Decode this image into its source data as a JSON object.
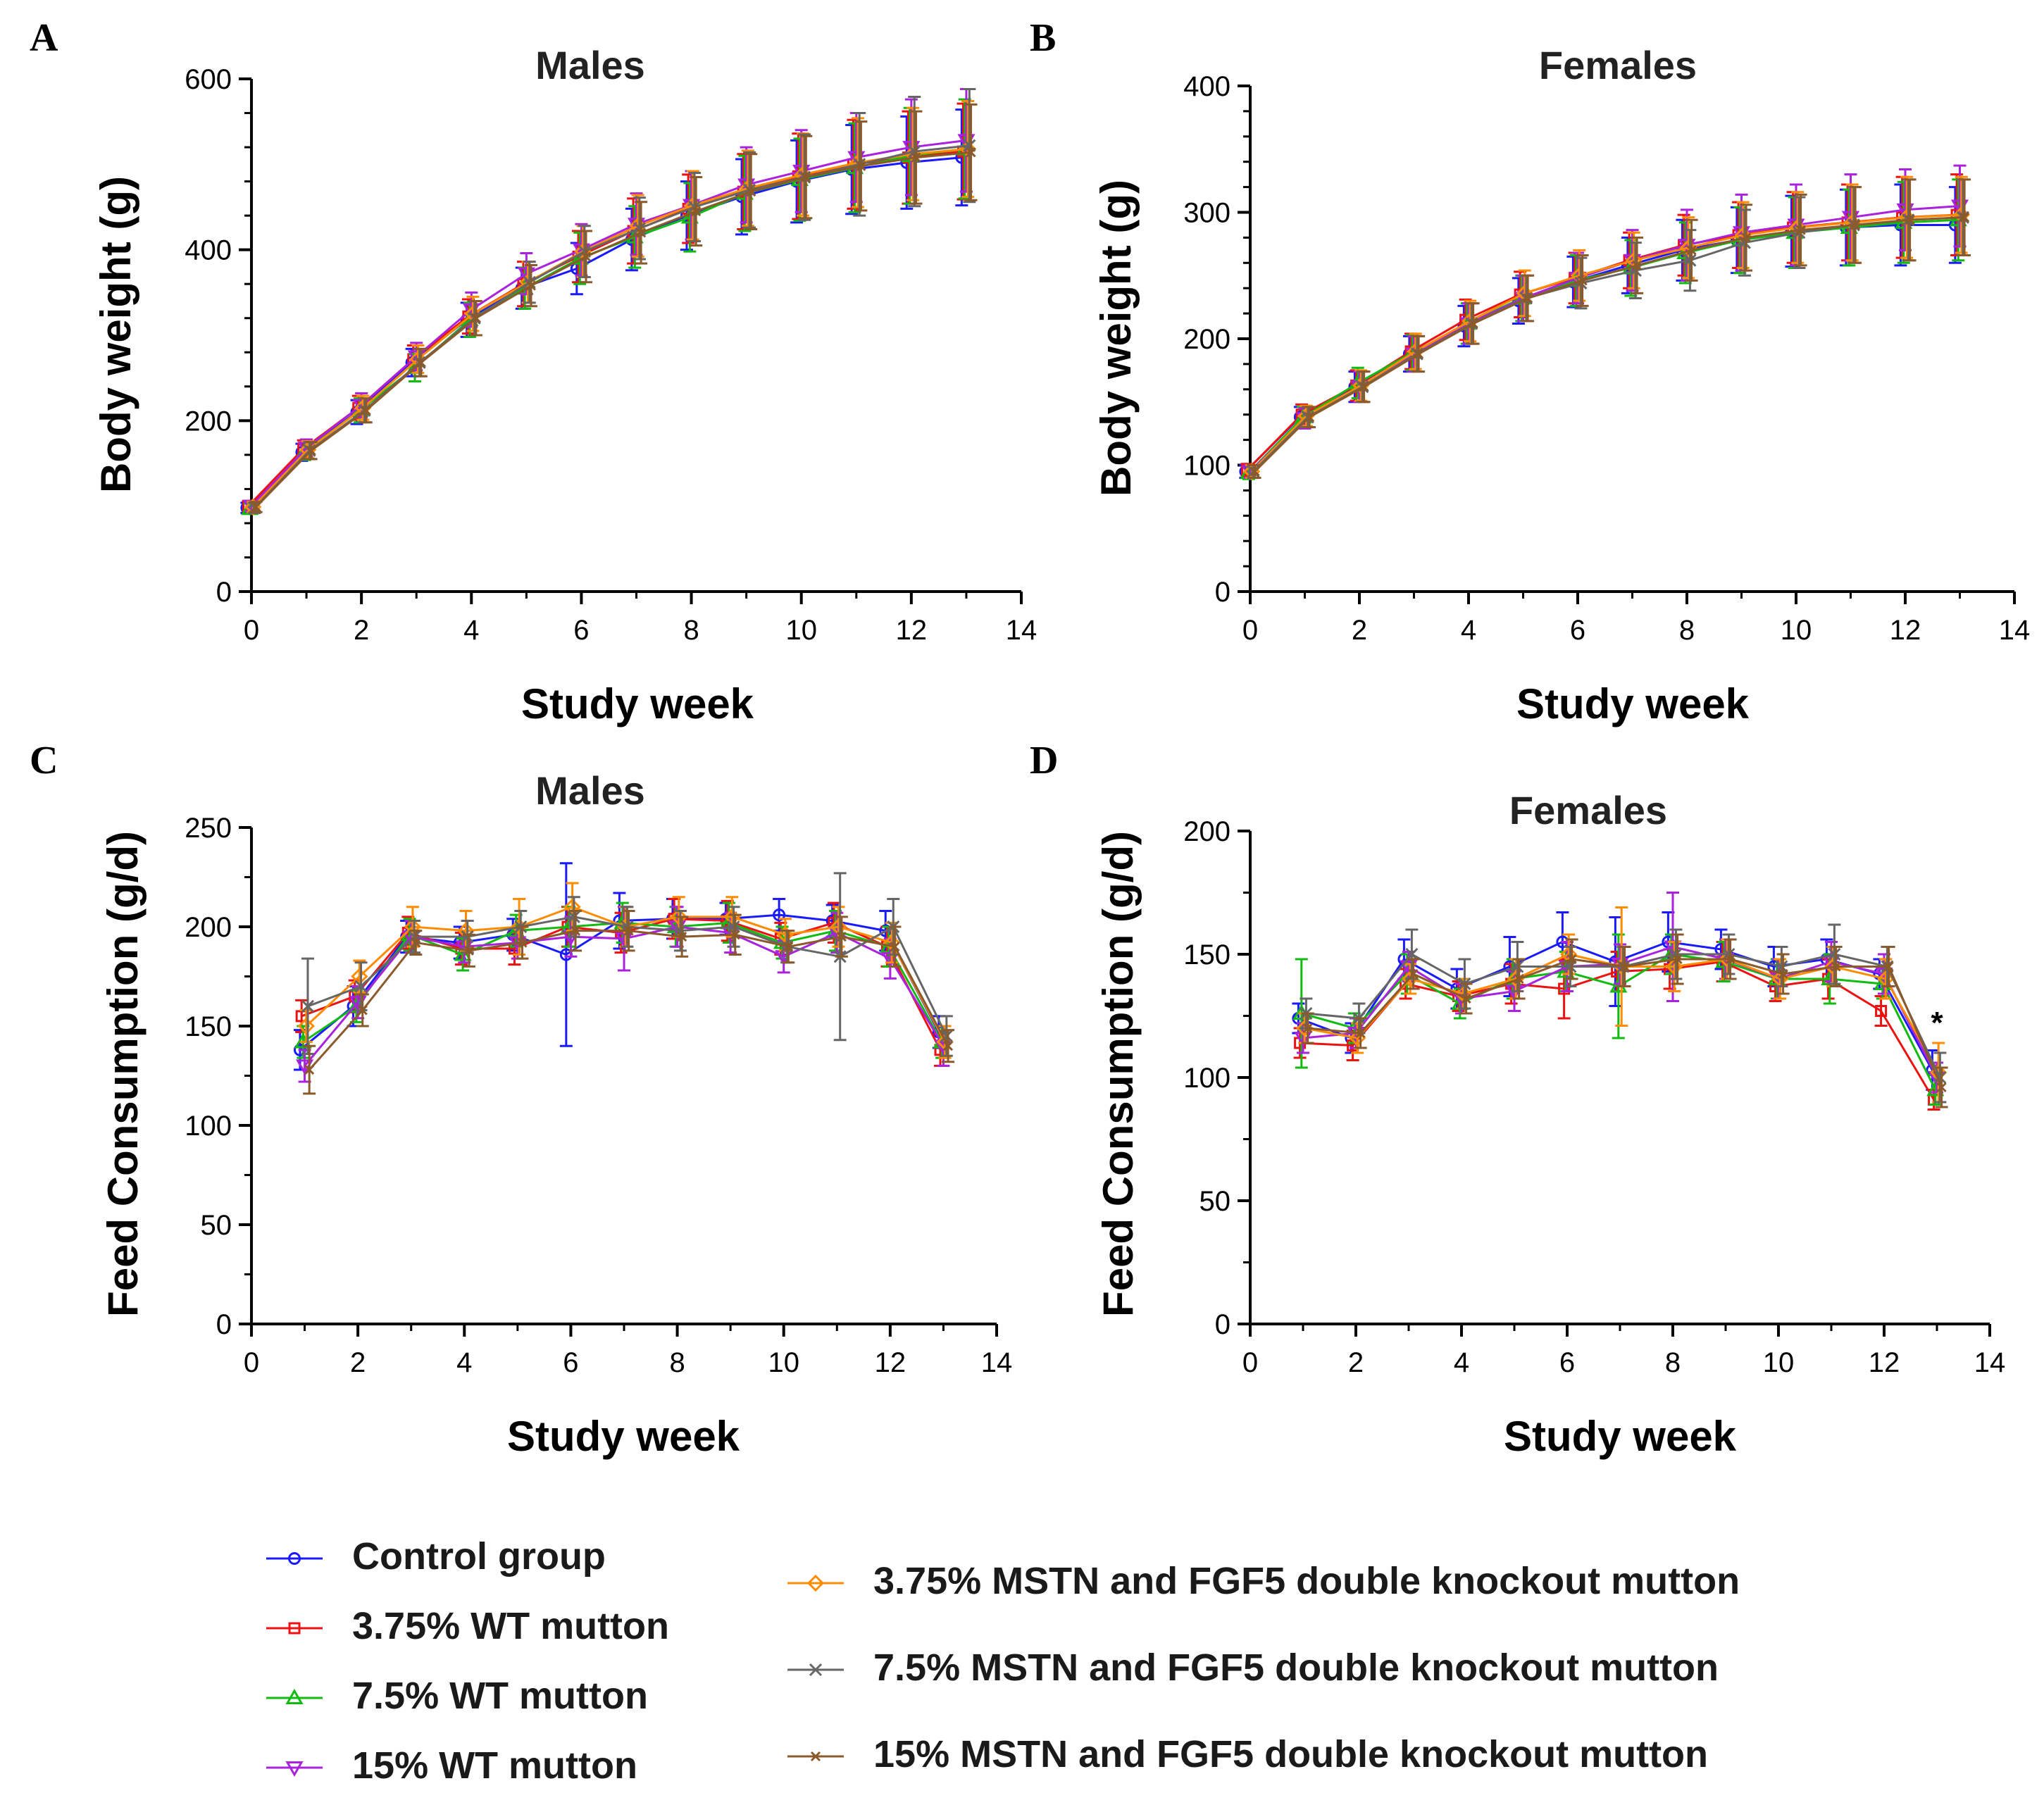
{
  "legend": [
    {
      "label": "Control group",
      "color": "#1a1aff",
      "marker": "circle"
    },
    {
      "label": "3.75% WT mutton",
      "color": "#ee1111",
      "marker": "square"
    },
    {
      "label": "7.5% WT mutton",
      "color": "#11bb11",
      "marker": "triangle-up"
    },
    {
      "label": "15% WT mutton",
      "color": "#aa22dd",
      "marker": "triangle-down"
    },
    {
      "label": "3.75% MSTN and FGF5 double knockout mutton",
      "color": "#ff8c00",
      "marker": "diamond"
    },
    {
      "label": "7.5% MSTN and FGF5 double knockout mutton",
      "color": "#666666",
      "marker": "x"
    },
    {
      "label": "15% MSTN and FGF5 double knockout mutton",
      "color": "#8b5a2b",
      "marker": "x-small"
    }
  ],
  "chart_data": [
    {
      "panel": "A",
      "title": "Males",
      "type": "line",
      "xlabel": "Study week",
      "ylabel": "Body weight (g)",
      "xlim": [
        0,
        14
      ],
      "ylim": [
        0,
        600
      ],
      "xticks": [
        0,
        2,
        4,
        6,
        8,
        10,
        12,
        14
      ],
      "yticks": [
        0,
        200,
        400,
        600
      ],
      "x": [
        0,
        1,
        2,
        3,
        4,
        5,
        6,
        7,
        8,
        9,
        10,
        11,
        12,
        13
      ],
      "series": [
        {
          "name": "Control group",
          "values": [
            98,
            163,
            210,
            268,
            318,
            355,
            378,
            412,
            440,
            462,
            480,
            494,
            502,
            508
          ],
          "err": [
            6,
            10,
            14,
            16,
            20,
            24,
            30,
            36,
            40,
            44,
            48,
            52,
            54,
            56
          ]
        },
        {
          "name": "3.75% WT mutton",
          "values": [
            100,
            167,
            215,
            272,
            322,
            360,
            392,
            422,
            448,
            468,
            486,
            500,
            508,
            515
          ],
          "err": [
            6,
            10,
            14,
            16,
            20,
            26,
            30,
            38,
            40,
            44,
            50,
            52,
            54,
            56
          ]
        },
        {
          "name": "7.5% WT mutton",
          "values": [
            97,
            164,
            212,
            262,
            318,
            355,
            390,
            415,
            438,
            466,
            482,
            496,
            510,
            518
          ],
          "err": [
            6,
            10,
            14,
            16,
            20,
            24,
            30,
            36,
            40,
            44,
            48,
            52,
            56,
            58
          ]
        },
        {
          "name": "15% WT mutton",
          "values": [
            100,
            168,
            218,
            275,
            330,
            372,
            400,
            430,
            452,
            476,
            492,
            508,
            520,
            528
          ],
          "err": [
            6,
            10,
            14,
            16,
            20,
            24,
            30,
            36,
            40,
            44,
            48,
            52,
            56,
            60
          ]
        },
        {
          "name": "3.75% MSTN and FGF5 double knockout mutton",
          "values": [
            99,
            166,
            215,
            272,
            325,
            362,
            398,
            428,
            452,
            472,
            488,
            502,
            512,
            518
          ],
          "err": [
            6,
            10,
            14,
            16,
            20,
            24,
            30,
            36,
            40,
            44,
            48,
            52,
            54,
            56
          ]
        },
        {
          "name": "7.5% MSTN and FGF5 double knockout mutton",
          "values": [
            98,
            165,
            212,
            268,
            320,
            362,
            398,
            425,
            450,
            470,
            485,
            500,
            515,
            522
          ],
          "err": [
            6,
            10,
            14,
            16,
            20,
            24,
            30,
            36,
            40,
            44,
            50,
            60,
            64,
            66
          ]
        },
        {
          "name": "15% MSTN and FGF5 double knockout mutton",
          "values": [
            99,
            165,
            212,
            268,
            320,
            358,
            392,
            420,
            445,
            468,
            485,
            498,
            508,
            514
          ],
          "err": [
            6,
            10,
            14,
            16,
            20,
            24,
            30,
            36,
            40,
            44,
            48,
            52,
            54,
            56
          ]
        }
      ]
    },
    {
      "panel": "B",
      "title": "Females",
      "type": "line",
      "xlabel": "Study week",
      "ylabel": "Body weight (g)",
      "xlim": [
        0,
        14
      ],
      "ylim": [
        0,
        400
      ],
      "xticks": [
        0,
        2,
        4,
        6,
        8,
        10,
        12,
        14
      ],
      "yticks": [
        0,
        100,
        200,
        300,
        400
      ],
      "x": [
        0,
        1,
        2,
        3,
        4,
        5,
        6,
        7,
        8,
        9,
        10,
        11,
        12,
        13
      ],
      "series": [
        {
          "name": "Control group",
          "values": [
            95,
            138,
            162,
            188,
            210,
            230,
            245,
            258,
            270,
            278,
            285,
            288,
            290,
            290
          ],
          "err": [
            5,
            8,
            12,
            14,
            16,
            18,
            20,
            22,
            24,
            26,
            28,
            30,
            32,
            30
          ]
        },
        {
          "name": "3.75% WT mutton",
          "values": [
            96,
            140,
            163,
            190,
            215,
            235,
            248,
            262,
            274,
            282,
            288,
            292,
            296,
            298
          ],
          "err": [
            5,
            8,
            12,
            14,
            16,
            18,
            20,
            22,
            24,
            26,
            28,
            30,
            32,
            32
          ]
        },
        {
          "name": "7.5% WT mutton",
          "values": [
            94,
            138,
            165,
            189,
            212,
            232,
            246,
            256,
            268,
            278,
            284,
            288,
            292,
            294
          ],
          "err": [
            5,
            8,
            12,
            14,
            16,
            18,
            20,
            22,
            24,
            26,
            28,
            30,
            32,
            32
          ]
        },
        {
          "name": "15% WT mutton",
          "values": [
            95,
            137,
            162,
            188,
            212,
            232,
            248,
            262,
            274,
            284,
            290,
            296,
            302,
            305
          ],
          "err": [
            5,
            8,
            12,
            14,
            16,
            18,
            20,
            24,
            28,
            30,
            32,
            34,
            32,
            32
          ]
        },
        {
          "name": "3.75% MSTN and FGF5 double knockout mutton",
          "values": [
            95,
            139,
            163,
            190,
            214,
            236,
            250,
            262,
            272,
            282,
            288,
            292,
            296,
            298
          ],
          "err": [
            5,
            8,
            12,
            14,
            16,
            18,
            20,
            22,
            24,
            26,
            28,
            30,
            32,
            30
          ]
        },
        {
          "name": "7.5% MSTN and FGF5 double knockout mutton",
          "values": [
            95,
            138,
            162,
            188,
            212,
            232,
            244,
            254,
            262,
            276,
            284,
            290,
            294,
            296
          ],
          "err": [
            5,
            8,
            12,
            14,
            16,
            18,
            20,
            22,
            24,
            26,
            28,
            30,
            32,
            30
          ]
        },
        {
          "name": "15% MSTN and FGF5 double knockout mutton",
          "values": [
            95,
            138,
            162,
            188,
            212,
            232,
            246,
            258,
            270,
            280,
            286,
            290,
            294,
            296
          ],
          "err": [
            5,
            8,
            12,
            14,
            16,
            18,
            20,
            22,
            24,
            26,
            28,
            30,
            32,
            30
          ]
        }
      ]
    },
    {
      "panel": "C",
      "title": "Males",
      "type": "line",
      "xlabel": "Study week",
      "ylabel": "Feed Consumption (g/d)",
      "xlim": [
        0,
        14
      ],
      "ylim": [
        0,
        250
      ],
      "xticks": [
        0,
        2,
        4,
        6,
        8,
        10,
        12,
        14
      ],
      "yticks": [
        0,
        50,
        100,
        150,
        200,
        250
      ],
      "x": [
        1,
        2,
        3,
        4,
        5,
        6,
        7,
        8,
        9,
        10,
        11,
        12,
        13
      ],
      "series": [
        {
          "name": "Control group",
          "values": [
            138,
            160,
            195,
            192,
            196,
            186,
            203,
            204,
            204,
            206,
            203,
            198,
            147
          ],
          "err": [
            10,
            10,
            8,
            8,
            8,
            46,
            14,
            10,
            8,
            8,
            8,
            10,
            8
          ]
        },
        {
          "name": "3.75% WT mutton",
          "values": [
            155,
            165,
            197,
            189,
            189,
            200,
            197,
            204,
            203,
            194,
            202,
            190,
            138
          ],
          "err": [
            8,
            8,
            8,
            8,
            8,
            10,
            10,
            10,
            10,
            8,
            10,
            10,
            8
          ]
        },
        {
          "name": "7.5% WT mutton",
          "values": [
            142,
            160,
            196,
            186,
            198,
            200,
            202,
            200,
            202,
            192,
            198,
            190,
            142
          ],
          "err": [
            8,
            8,
            8,
            8,
            8,
            10,
            10,
            10,
            10,
            8,
            10,
            10,
            8
          ]
        },
        {
          "name": "15% WT mutton",
          "values": [
            130,
            162,
            195,
            190,
            192,
            195,
            194,
            200,
            197,
            185,
            197,
            184,
            140
          ],
          "err": [
            8,
            8,
            8,
            8,
            8,
            10,
            16,
            10,
            10,
            8,
            10,
            10,
            10
          ]
        },
        {
          "name": "3.75% MSTN and FGF5 double knockout mutton",
          "values": [
            150,
            175,
            200,
            198,
            200,
            210,
            200,
            205,
            205,
            196,
            200,
            192,
            142
          ],
          "err": [
            8,
            8,
            10,
            10,
            14,
            12,
            10,
            10,
            10,
            8,
            10,
            10,
            8
          ]
        },
        {
          "name": "7.5% MSTN and FGF5 double knockout mutton",
          "values": [
            160,
            170,
            195,
            195,
            200,
            205,
            200,
            198,
            200,
            190,
            185,
            200,
            145
          ],
          "err": [
            24,
            12,
            8,
            8,
            8,
            10,
            10,
            10,
            10,
            8,
            42,
            14,
            10
          ]
        },
        {
          "name": "15% MSTN and FGF5 double knockout mutton",
          "values": [
            128,
            158,
            192,
            188,
            192,
            198,
            198,
            195,
            196,
            190,
            195,
            190,
            140
          ],
          "err": [
            12,
            8,
            6,
            8,
            8,
            10,
            10,
            10,
            10,
            8,
            10,
            10,
            8
          ]
        }
      ]
    },
    {
      "panel": "D",
      "title": "Females",
      "type": "line",
      "xlabel": "Study week",
      "ylabel": "Feed Consumption (g/d)",
      "xlim": [
        0,
        14
      ],
      "ylim": [
        0,
        200
      ],
      "xticks": [
        0,
        2,
        4,
        6,
        8,
        10,
        12,
        14
      ],
      "yticks": [
        0,
        50,
        100,
        150,
        200
      ],
      "x": [
        1,
        2,
        3,
        4,
        5,
        6,
        7,
        8,
        9,
        10,
        11,
        12,
        13
      ],
      "series": [
        {
          "name": "Control group",
          "values": [
            124,
            116,
            148,
            136,
            145,
            155,
            147,
            155,
            152,
            145,
            148,
            142,
            103
          ],
          "err": [
            6,
            6,
            8,
            8,
            12,
            12,
            18,
            12,
            8,
            8,
            8,
            6,
            8
          ]
        },
        {
          "name": "3.75% WT mutton",
          "values": [
            114,
            113,
            138,
            133,
            138,
            136,
            143,
            144,
            147,
            137,
            140,
            127,
            91
          ],
          "err": [
            6,
            6,
            6,
            6,
            8,
            12,
            8,
            8,
            8,
            6,
            8,
            6,
            4
          ]
        },
        {
          "name": "7.5% WT mutton",
          "values": [
            126,
            120,
            142,
            130,
            140,
            143,
            137,
            150,
            147,
            140,
            140,
            138,
            95
          ],
          "err": [
            22,
            6,
            8,
            6,
            8,
            8,
            21,
            8,
            8,
            8,
            10,
            6,
            6
          ]
        },
        {
          "name": "15% WT mutton",
          "values": [
            116,
            118,
            145,
            132,
            135,
            145,
            146,
            153,
            148,
            140,
            147,
            142,
            100
          ],
          "err": [
            6,
            6,
            6,
            6,
            8,
            10,
            8,
            22,
            8,
            8,
            8,
            8,
            6
          ]
        },
        {
          "name": "3.75% MSTN and FGF5 double knockout mutton",
          "values": [
            120,
            116,
            140,
            134,
            140,
            150,
            145,
            145,
            148,
            140,
            145,
            140,
            102
          ],
          "err": [
            6,
            6,
            6,
            6,
            8,
            8,
            24,
            10,
            8,
            8,
            8,
            8,
            12
          ]
        },
        {
          "name": "7.5% MSTN and FGF5 double knockout mutton",
          "values": [
            126,
            124,
            150,
            138,
            145,
            145,
            145,
            150,
            150,
            145,
            150,
            145,
            100
          ],
          "err": [
            6,
            6,
            10,
            10,
            10,
            8,
            8,
            10,
            8,
            8,
            12,
            8,
            10
          ]
        },
        {
          "name": "15% MSTN and FGF5 double knockout mutton",
          "values": [
            120,
            118,
            142,
            132,
            140,
            148,
            145,
            148,
            148,
            142,
            145,
            145,
            96
          ],
          "err": [
            6,
            6,
            6,
            6,
            8,
            8,
            8,
            10,
            8,
            8,
            8,
            8,
            8
          ]
        }
      ],
      "annotations": [
        {
          "text": "*",
          "x": 13,
          "y": 118
        }
      ]
    }
  ]
}
